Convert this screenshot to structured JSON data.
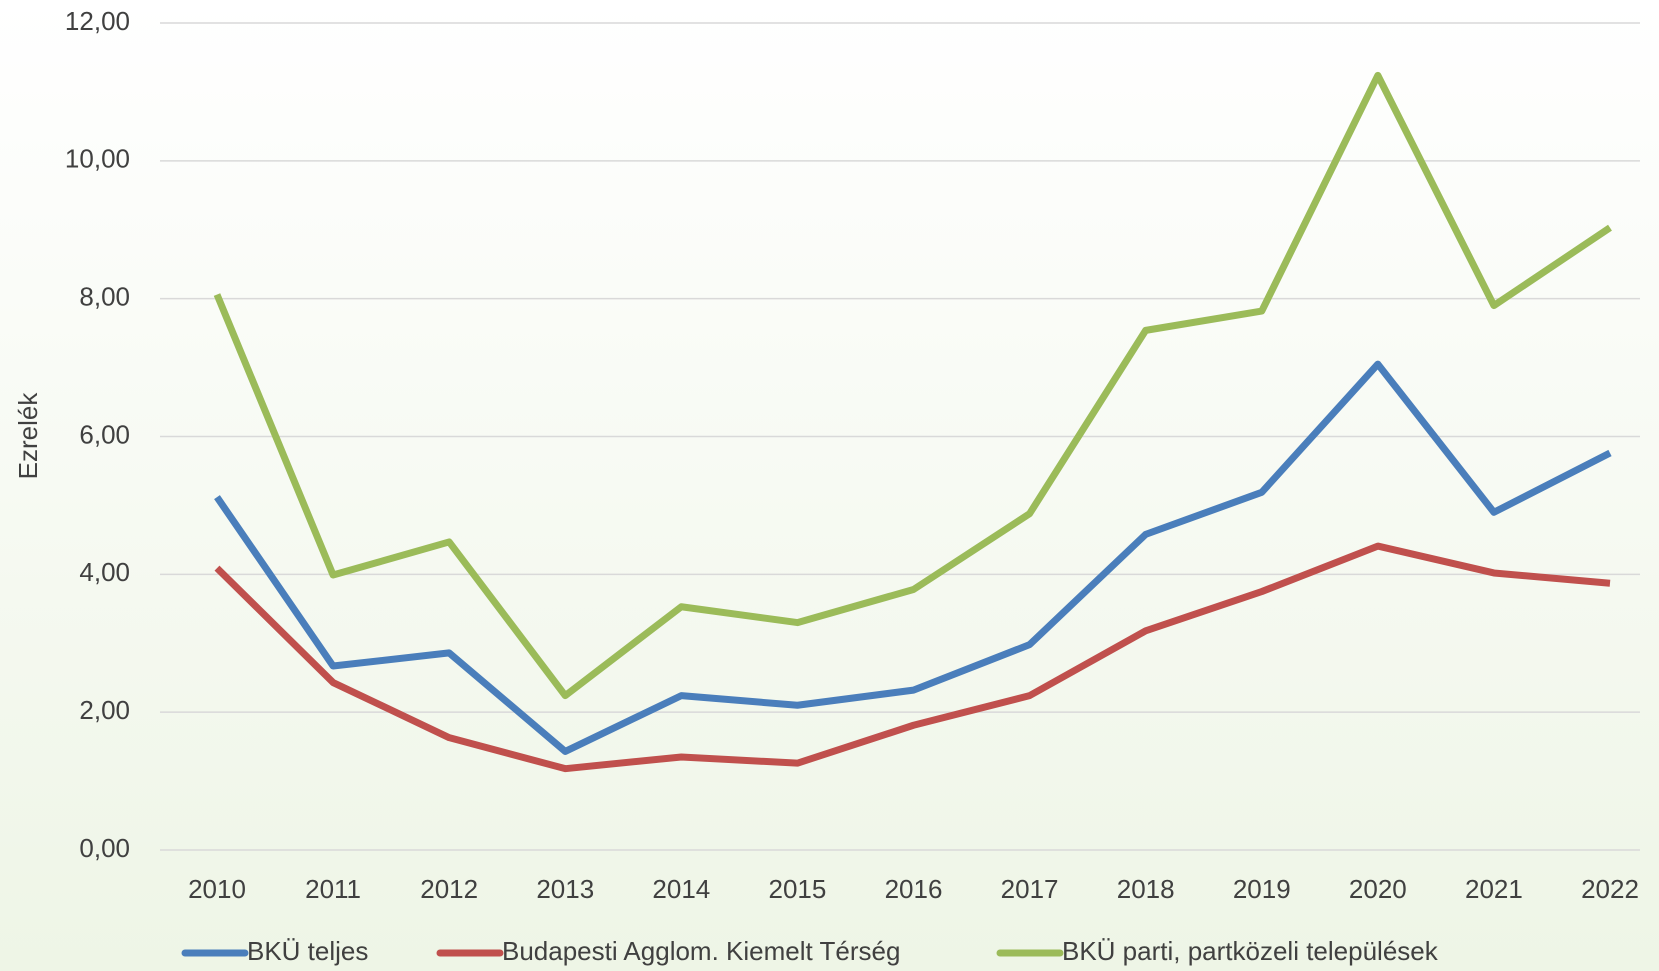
{
  "chart_data": {
    "type": "line",
    "y_label": "Ezrelék",
    "categories": [
      "2010",
      "2011",
      "2012",
      "2013",
      "2014",
      "2015",
      "2016",
      "2017",
      "2018",
      "2019",
      "2020",
      "2021",
      "2022"
    ],
    "series": [
      {
        "name": "BKÜ teljes",
        "color": "#4a7ebb",
        "values": [
          5.12,
          2.67,
          2.86,
          1.43,
          2.24,
          2.1,
          2.32,
          2.98,
          4.58,
          5.19,
          7.05,
          4.9,
          5.76
        ]
      },
      {
        "name": "Budapesti Agglom. Kiemelt Térség",
        "color": "#c0504d",
        "values": [
          4.09,
          2.43,
          1.63,
          1.18,
          1.35,
          1.26,
          1.81,
          2.24,
          3.18,
          3.75,
          4.41,
          4.02,
          3.87
        ]
      },
      {
        "name": "BKÜ parti, partközeli települések",
        "color": "#9bbb59",
        "values": [
          8.06,
          3.99,
          4.47,
          2.24,
          3.53,
          3.3,
          3.78,
          4.88,
          7.54,
          7.82,
          11.24,
          7.9,
          9.03
        ]
      }
    ],
    "ylim": [
      0,
      12
    ],
    "yticks": [
      {
        "value": 0,
        "label": "0,00"
      },
      {
        "value": 2,
        "label": "2,00"
      },
      {
        "value": 4,
        "label": "4,00"
      },
      {
        "value": 6,
        "label": "6,00"
      },
      {
        "value": 8,
        "label": "8,00"
      },
      {
        "value": 10,
        "label": "10,00"
      },
      {
        "value": 12,
        "label": "12,00"
      }
    ],
    "grid": true
  }
}
